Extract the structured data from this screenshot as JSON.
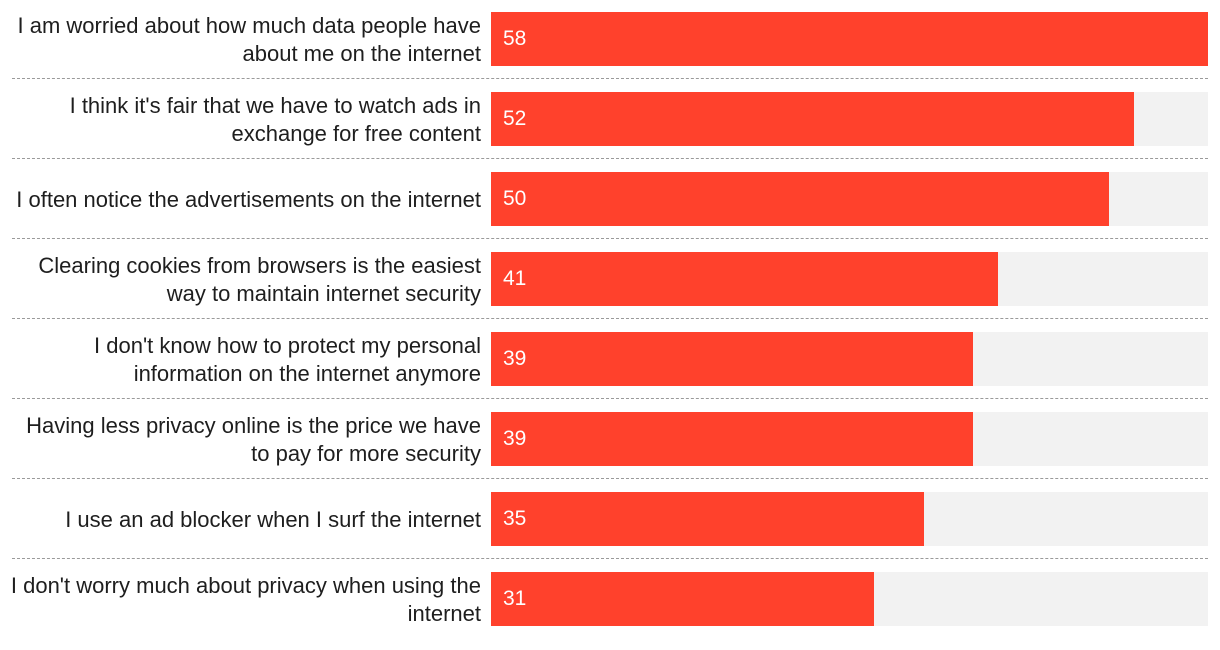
{
  "chart_data": {
    "type": "bar",
    "orientation": "horizontal",
    "categories": [
      "I am worried about how much data people have about me on the internet",
      "I think it's fair that we have to watch ads in exchange for free content",
      "I often notice the advertisements on the internet",
      "Clearing cookies from browsers is the easiest way to maintain internet security",
      "I don't know how to protect my personal information on the internet anymore",
      "Having less privacy online is the price we have to pay for more security",
      "I use an ad blocker when I surf the internet",
      "I don't worry much about privacy when using the internet"
    ],
    "values": [
      58,
      52,
      50,
      41,
      39,
      39,
      35,
      31
    ],
    "xlim": [
      0,
      58
    ],
    "title": "",
    "xlabel": "",
    "ylabel": "",
    "grid": false,
    "legend": "none",
    "colors": {
      "bar": "#ff412c",
      "track": "#f2f2f2",
      "value_text": "#ffffff",
      "label_text": "#1e1e1e",
      "divider": "#9a9a9a"
    }
  }
}
